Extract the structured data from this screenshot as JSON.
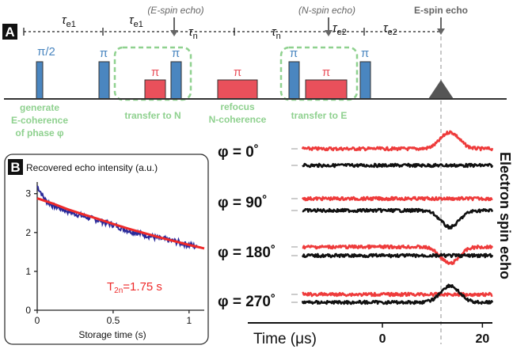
{
  "panel_a": {
    "label": "A",
    "intervals": [
      {
        "sym": "τ",
        "sub": "e1"
      },
      {
        "sym": "τ",
        "sub": "e1"
      },
      {
        "sym": "τ",
        "sub": "n"
      },
      {
        "sym": "τ",
        "sub": "n"
      },
      {
        "sym": "τ",
        "sub": "e2"
      },
      {
        "sym": "τ",
        "sub": "e2"
      }
    ],
    "echo_markers": {
      "e_spin_echo_mid": "(E-spin echo)",
      "n_spin_echo_mid": "(N-spin echo)",
      "e_spin_echo_final": "E-spin echo"
    },
    "pulses": {
      "e_half": "π/2",
      "e_pi": "π",
      "n_pi": "π"
    },
    "step_labels": {
      "generate": [
        "generate",
        "E-coherence",
        "of phase φ"
      ],
      "transfer_n": "transfer to N",
      "refocus": [
        "refocus",
        "N-coherence"
      ],
      "transfer_e": "transfer to E"
    },
    "colors": {
      "electron_pulse": "#4a86c0",
      "nuclear_pulse": "#e9505b",
      "step_label": "#8fd18f",
      "annotation": "#6f6f6f"
    }
  },
  "panel_b": {
    "label": "B",
    "title": "Recovered echo intensity (a.u.)",
    "xlabel": "Storage time (s)",
    "fit_label": {
      "sym": "T",
      "sub": "2n",
      "value": "=1.75 s"
    },
    "colors": {
      "data": "#2a2a9a",
      "fit": "#ee2a2a"
    }
  },
  "panel_c": {
    "ylabel": "Electron spin echo",
    "xlabel": "Time (μs)",
    "phases": [
      "φ = 0˚",
      "φ = 90˚",
      "φ = 180˚",
      "φ = 270˚"
    ],
    "colors": {
      "red_trace": "#ee3b3b",
      "black_trace": "#111111"
    }
  },
  "chart_data": [
    {
      "type": "line",
      "title": "Recovered echo intensity (a.u.)",
      "xlabel": "Storage time (s)",
      "ylabel": "",
      "xlim": [
        0,
        1.1
      ],
      "ylim": [
        0,
        3.3
      ],
      "x_ticks": [
        0,
        0.5,
        1
      ],
      "y_ticks": [
        0,
        1,
        2,
        3
      ],
      "series": [
        {
          "name": "",
          "style": "noisy",
          "x": [
            0,
            0.05,
            0.1,
            0.2,
            0.3,
            0.4,
            0.5,
            0.6,
            0.7,
            0.8,
            0.9,
            1.0,
            1.05
          ],
          "y": [
            3.2,
            2.85,
            2.7,
            2.55,
            2.42,
            2.32,
            2.2,
            2.05,
            1.95,
            1.85,
            1.78,
            1.68,
            1.63
          ]
        },
        {
          "name": "T2n =1.75 s",
          "style": "fit",
          "x": [
            0,
            0.1,
            0.2,
            0.3,
            0.4,
            0.5,
            0.6,
            0.7,
            0.8,
            0.9,
            1.0,
            1.1
          ],
          "y": [
            2.88,
            2.75,
            2.6,
            2.47,
            2.35,
            2.22,
            2.1,
            1.99,
            1.88,
            1.78,
            1.68,
            1.59
          ]
        }
      ]
    },
    {
      "type": "line",
      "title": "",
      "xlabel": "Time (μs)",
      "ylabel": "Electron spin echo",
      "xlim": [
        -16,
        22
      ],
      "x_ticks": [
        0,
        20
      ],
      "echo_center": 13.5,
      "rows": [
        {
          "label": "φ = 0˚",
          "red": 1,
          "black": 0
        },
        {
          "label": "φ = 90˚",
          "red": 0,
          "black": -1
        },
        {
          "label": "φ = 180˚",
          "red": -1,
          "black": 0
        },
        {
          "label": "φ = 270˚",
          "red": 0,
          "black": 1
        }
      ]
    }
  ]
}
